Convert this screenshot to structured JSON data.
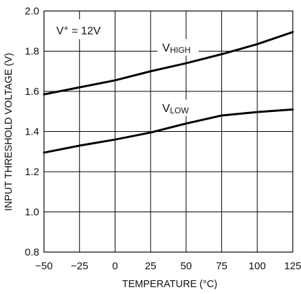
{
  "chart_data": {
    "type": "line",
    "title": "",
    "xlabel": "TEMPERATURE (°C)",
    "ylabel": "INPUT THRESHOLD VOLTAGE (V)",
    "xlim": [
      -50,
      125
    ],
    "ylim": [
      0.8,
      2.0
    ],
    "xticks": [
      -50,
      -25,
      0,
      25,
      50,
      75,
      100,
      125
    ],
    "yticks": [
      0.8,
      1.0,
      1.2,
      1.4,
      1.6,
      1.8,
      2.0
    ],
    "xtick_labels": [
      "−50",
      "−25",
      "0",
      "25",
      "50",
      "75",
      "100",
      "125"
    ],
    "ytick_labels": [
      "0.8",
      "1.0",
      "1.2",
      "1.4",
      "1.6",
      "1.8",
      "2.0"
    ],
    "grid": true,
    "legend": "none",
    "annotation": {
      "text_main": "V",
      "text_sup": "+",
      "text_rest": " = 12V"
    },
    "series": [
      {
        "name": "VHIGH",
        "label_main": "V",
        "label_sub": "HIGH",
        "color": "#000000",
        "x": [
          -50,
          -25,
          0,
          25,
          50,
          75,
          100,
          125
        ],
        "y": [
          1.585,
          1.62,
          1.655,
          1.7,
          1.74,
          1.785,
          1.835,
          1.895
        ]
      },
      {
        "name": "VLOW",
        "label_main": "V",
        "label_sub": "LOW",
        "color": "#000000",
        "x": [
          -50,
          -25,
          0,
          25,
          50,
          75,
          100,
          125
        ],
        "y": [
          1.295,
          1.33,
          1.36,
          1.395,
          1.44,
          1.48,
          1.497,
          1.51
        ]
      }
    ]
  }
}
